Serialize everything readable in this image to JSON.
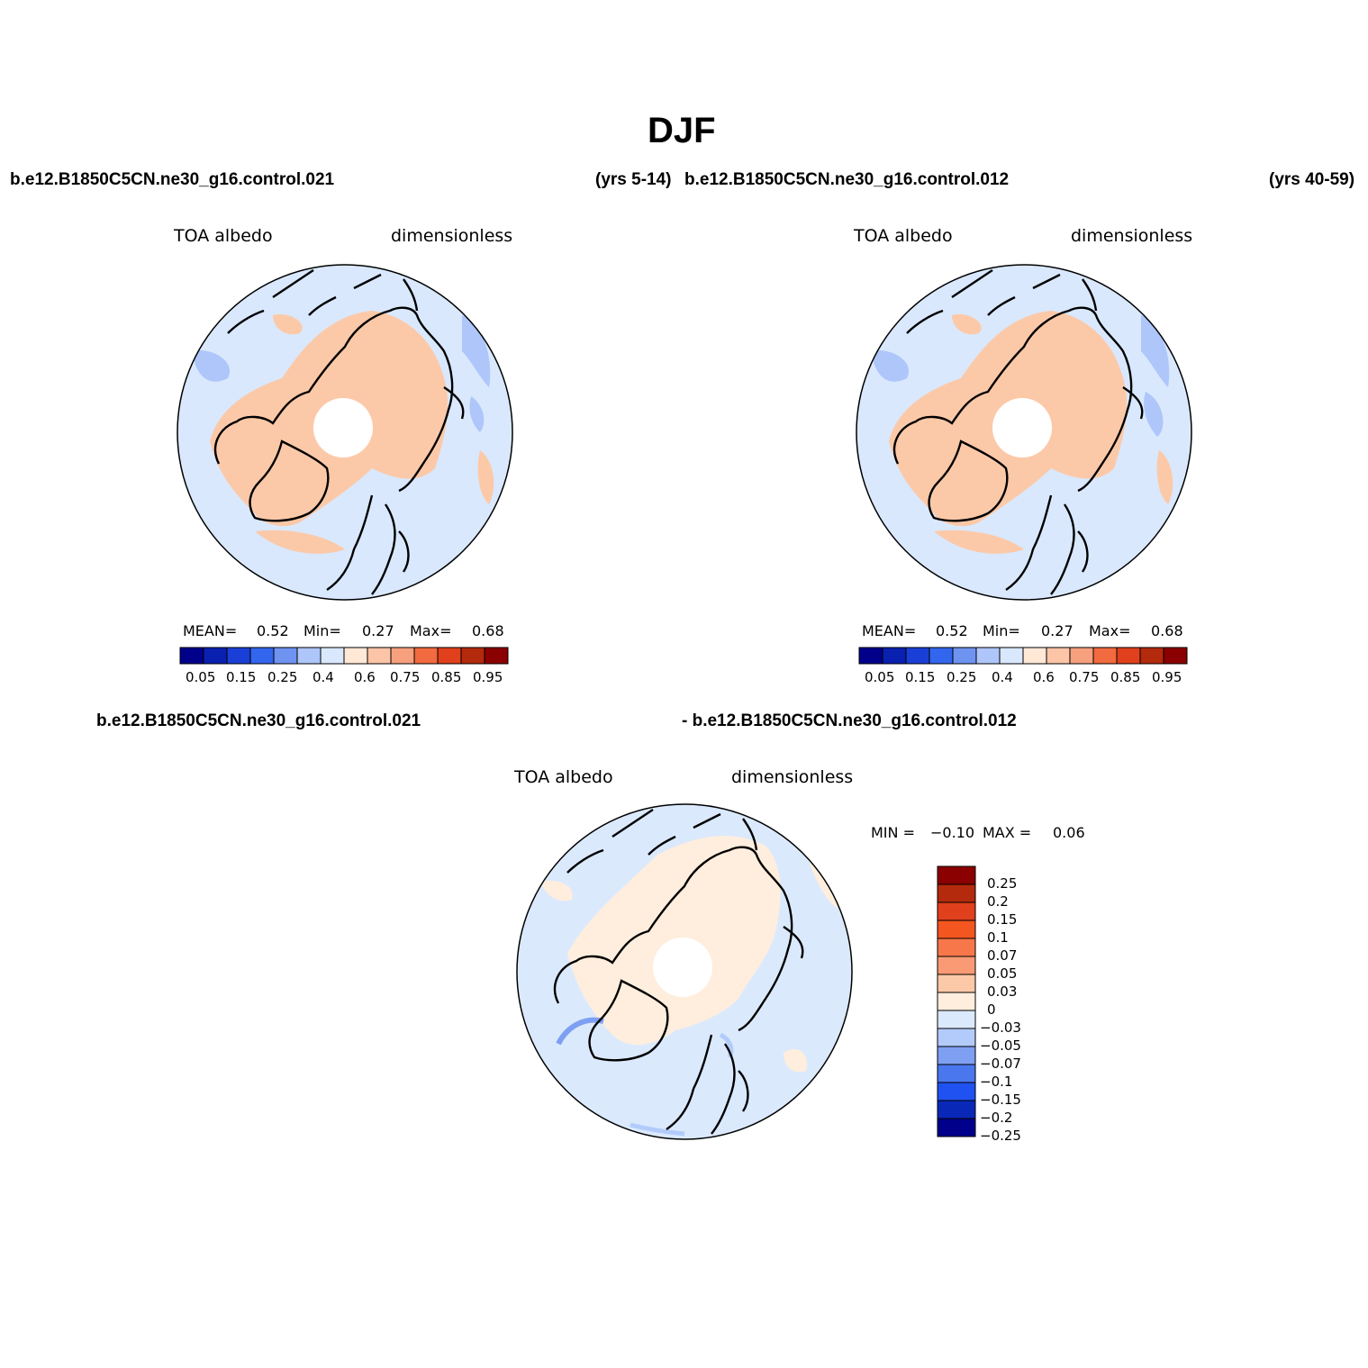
{
  "page": {
    "title": "DJF",
    "top_left_case": "b.e12.B1850C5CN.ne30_g16.control.021",
    "top_left_years": "(yrs 5-14)",
    "top_right_case": "b.e12.B1850C5CN.ne30_g16.control.012",
    "top_right_years": "(yrs 40-59)",
    "bottom_case_a": "b.e12.B1850C5CN.ne30_g16.control.021",
    "bottom_case_b": "- b.e12.B1850C5CN.ne30_g16.control.012"
  },
  "panels": [
    {
      "variable": "TOA albedo",
      "units": "dimensionless",
      "stats": {
        "mean_label": "MEAN=",
        "mean": "0.52",
        "min_label": "Min=",
        "min": "0.27",
        "max_label": "Max=",
        "max": "0.68"
      },
      "colorbar_labels": [
        "0.05",
        "0.15",
        "0.25",
        "0.4",
        "0.6",
        "0.75",
        "0.85",
        "0.95"
      ]
    },
    {
      "variable": "TOA albedo",
      "units": "dimensionless",
      "stats": {
        "mean_label": "MEAN=",
        "mean": "0.52",
        "min_label": "Min=",
        "min": "0.27",
        "max_label": "Max=",
        "max": "0.68"
      },
      "colorbar_labels": [
        "0.05",
        "0.15",
        "0.25",
        "0.4",
        "0.6",
        "0.75",
        "0.85",
        "0.95"
      ]
    },
    {
      "variable": "TOA albedo",
      "units": "dimensionless",
      "stats": {
        "min_label": "MIN =",
        "min": "−0.10",
        "max_label": "MAX =",
        "max": "0.06"
      },
      "colorbar_labels": [
        "0.25",
        "0.2",
        "0.15",
        "0.1",
        "0.07",
        "0.05",
        "0.03",
        "0",
        "−0.03",
        "−0.05",
        "−0.07",
        "−0.1",
        "−0.15",
        "−0.2",
        "−0.25"
      ]
    }
  ],
  "colors": {
    "abs_scale": [
      "#00008b",
      "#0a20b0",
      "#1a3fd6",
      "#3366ee",
      "#6f93f0",
      "#aec6fa",
      "#d9e8fd",
      "#ffe8d6",
      "#fcc5a8",
      "#f7a07e",
      "#f26a3f",
      "#e0401c",
      "#b32a0c",
      "#8b0000"
    ],
    "diff_scale_top_to_bottom": [
      "#8b0000",
      "#b32a0c",
      "#e0401c",
      "#f4561f",
      "#f7774a",
      "#f99a74",
      "#fcc9a8",
      "#ffeedd",
      "#dbe9fd",
      "#b3cbfb",
      "#7e9ff2",
      "#4a77ee",
      "#1f52f0",
      "#0a28b8",
      "#00008b"
    ],
    "ocean_abs": "#d9e8fd",
    "land_abs": "#fcc9a8",
    "ocean_diff": "#dbe9fd",
    "land_diff": "#ffeedd"
  }
}
